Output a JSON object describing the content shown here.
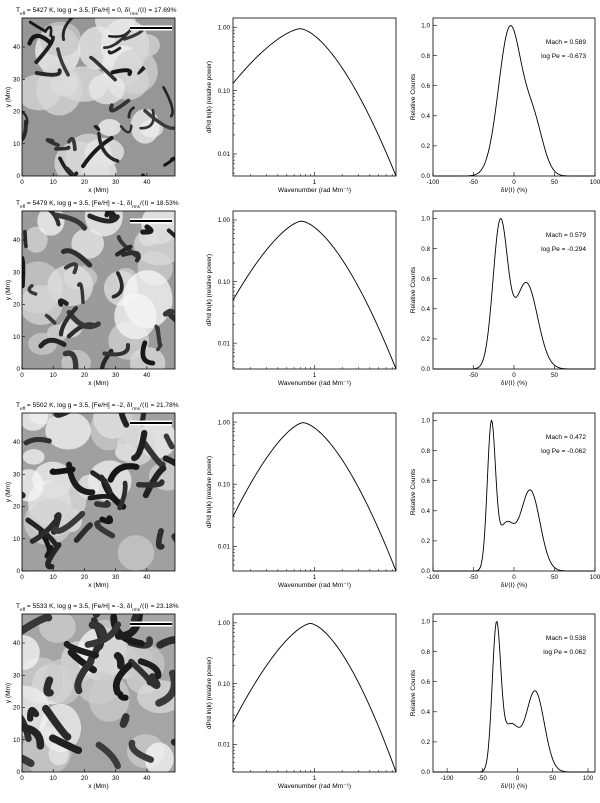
{
  "chart_data": [
    {
      "row": 1,
      "image_panel": {
        "type": "heatmap",
        "title_parts": [
          "T",
          "eff",
          " = 5427 K, log g = 3.5, [Fe/H] = 0, δI",
          "rms",
          "/⟨I⟩ = 17.69%"
        ],
        "xlabel": "x (Mm)",
        "ylabel": "y (Mm)",
        "xlim": [
          0,
          49
        ],
        "ylim": [
          0,
          49
        ],
        "xticks": [
          "0",
          "10",
          "20",
          "30",
          "40"
        ],
        "yticks": [
          "0",
          "10",
          "20",
          "30",
          "40"
        ]
      },
      "spectrum_panel": {
        "type": "line",
        "xlabel": "Wavenumber (rad Mm⁻¹)",
        "ylabel": "dP/d ln(k) (relative power)",
        "log_y": true,
        "log_x": true,
        "xlim": [
          0.13,
          7.7
        ],
        "ylim": [
          0.0045,
          1.4
        ],
        "xticks": [
          "1"
        ],
        "yticks": [
          "1.00",
          "0.10",
          "0.01"
        ],
        "peak_k": 0.7,
        "peak_power": 0.95,
        "left_power": 0.13,
        "right_power": 0.0045,
        "x": [
          0.13,
          0.7,
          7.7
        ],
        "y": [
          0.13,
          0.95,
          0.0045
        ]
      },
      "histogram_panel": {
        "type": "line",
        "xlabel": "δI/⟨I⟩ (%)",
        "ylabel": "Relative Counts",
        "xlim": [
          -100,
          100
        ],
        "ylim": [
          0,
          1.05
        ],
        "xticks": [
          "-100",
          "-50",
          "0",
          "50",
          "100"
        ],
        "yticks": [
          "0.0",
          "0.2",
          "0.4",
          "0.6",
          "0.8",
          "1.0"
        ],
        "mach_label": "Mach = 0.589",
        "pe_label": "log Pe = -0.673",
        "peaks": [
          {
            "x": -5,
            "h": 1.0,
            "w": 14
          },
          {
            "x": 24,
            "h": 0.35,
            "w": 12
          }
        ],
        "x": [
          -5,
          24
        ],
        "y": [
          1.0,
          0.35
        ]
      }
    },
    {
      "row": 2,
      "image_panel": {
        "type": "heatmap",
        "title_parts": [
          "T",
          "eff",
          " = 5479 K, log g = 3.5, [Fe/H] = -1, δI",
          "rms",
          "/⟨I⟩ = 18.53%"
        ],
        "xlabel": "x (Mm)",
        "ylabel": "y (Mm)",
        "xlim": [
          0,
          49
        ],
        "ylim": [
          0,
          49
        ],
        "xticks": [
          "0",
          "10",
          "20",
          "30",
          "40"
        ],
        "yticks": [
          "0",
          "10",
          "20",
          "30",
          "40"
        ]
      },
      "spectrum_panel": {
        "type": "line",
        "xlabel": "Wavenumber (rad Mm⁻¹)",
        "ylabel": "dP/d ln(k) (relative power)",
        "log_y": true,
        "log_x": true,
        "xlim": [
          0.13,
          7.7
        ],
        "ylim": [
          0.0038,
          1.4
        ],
        "xticks": [
          "1"
        ],
        "yticks": [
          "1.00",
          "0.10",
          "0.01"
        ],
        "peak_k": 0.72,
        "peak_power": 0.96,
        "left_power": 0.05,
        "right_power": 0.0038,
        "x": [
          0.13,
          0.72,
          7.7
        ],
        "y": [
          0.05,
          0.96,
          0.0038
        ]
      },
      "histogram_panel": {
        "type": "line",
        "xlabel": "δI/⟨I⟩ (%)",
        "ylabel": "Relative Counts",
        "xlim": [
          -100,
          100
        ],
        "ylim": [
          0,
          1.05
        ],
        "xticks": [
          "-50",
          "0",
          "50"
        ],
        "yticks": [
          "0.0",
          "0.2",
          "0.4",
          "0.6",
          "0.8",
          "1.0"
        ],
        "mach_label": "Mach = 0.579",
        "pe_label": "log Pe = -0.294",
        "peaks": [
          {
            "x": -17,
            "h": 1.0,
            "w": 9
          },
          {
            "x": 15,
            "h": 0.6,
            "w": 14
          }
        ],
        "x": [
          -17,
          15
        ],
        "y": [
          1.0,
          0.6
        ]
      }
    },
    {
      "row": 3,
      "image_panel": {
        "type": "heatmap",
        "title_parts": [
          "T",
          "eff",
          " = 5502 K, log g = 3.5, [Fe/H] = -2, δI",
          "rms",
          "/⟨I⟩ = 21.78%"
        ],
        "xlabel": "x (Mm)",
        "ylabel": "y (Mm)",
        "xlim": [
          0,
          49
        ],
        "ylim": [
          0,
          49
        ],
        "xticks": [
          "0",
          "10",
          "20",
          "30",
          "40"
        ],
        "yticks": [
          "0",
          "10",
          "20",
          "30",
          "40"
        ]
      },
      "spectrum_panel": {
        "type": "line",
        "xlabel": "Wavenumber (rad Mm⁻¹)",
        "ylabel": "dP/d ln(k) (relative power)",
        "log_y": true,
        "log_x": true,
        "xlim": [
          0.13,
          7.7
        ],
        "ylim": [
          0.004,
          1.4
        ],
        "xticks": [
          "1"
        ],
        "yticks": [
          "1.00",
          "0.10",
          "0.01"
        ],
        "peak_k": 0.75,
        "peak_power": 0.98,
        "left_power": 0.03,
        "right_power": 0.004,
        "x": [
          0.13,
          0.75,
          7.7
        ],
        "y": [
          0.03,
          0.98,
          0.004
        ]
      },
      "histogram_panel": {
        "type": "line",
        "xlabel": "δI/⟨I⟩ (%)",
        "ylabel": "Relative Counts",
        "xlim": [
          -100,
          100
        ],
        "ylim": [
          0,
          1.05
        ],
        "xticks": [
          "-100",
          "-50",
          "0",
          "50",
          "100"
        ],
        "yticks": [
          "0.0",
          "0.2",
          "0.4",
          "0.6",
          "0.8",
          "1.0"
        ],
        "mach_label": "Mach = 0.472",
        "pe_label": "log Pe = -0.062",
        "peaks": [
          {
            "x": -28,
            "h": 1.0,
            "w": 5
          },
          {
            "x": -10,
            "h": 0.32,
            "w": 10
          },
          {
            "x": 20,
            "h": 0.57,
            "w": 12
          }
        ],
        "x": [
          -28,
          -10,
          20
        ],
        "y": [
          1.0,
          0.32,
          0.57
        ]
      }
    },
    {
      "row": 4,
      "image_panel": {
        "type": "heatmap",
        "title_parts": [
          "T",
          "eff",
          " = 5533 K, log g = 3.5, [Fe/H] = -3, δI",
          "rms",
          "/⟨I⟩ = 23.18%"
        ],
        "xlabel": "x (Mm)",
        "ylabel": "y (Mm)",
        "xlim": [
          0,
          49
        ],
        "ylim": [
          0,
          49
        ],
        "xticks": [
          "0",
          "10",
          "20",
          "30",
          "40"
        ],
        "yticks": [
          "0",
          "10",
          "20",
          "30",
          "40"
        ]
      },
      "spectrum_panel": {
        "type": "line",
        "xlabel": "Wavenumber (rad Mm⁻¹)",
        "ylabel": "dP/d ln(k) (relative power)",
        "log_y": true,
        "log_x": true,
        "xlim": [
          0.13,
          7.7
        ],
        "ylim": [
          0.0035,
          1.4
        ],
        "xticks": [
          "1"
        ],
        "yticks": [
          "1.00",
          "0.10",
          "0.01"
        ],
        "peak_k": 0.9,
        "peak_power": 0.98,
        "left_power": 0.023,
        "right_power": 0.0035,
        "x": [
          0.13,
          0.9,
          7.7
        ],
        "y": [
          0.023,
          0.98,
          0.0035
        ]
      },
      "histogram_panel": {
        "type": "line",
        "xlabel": "δI/⟨I⟩ (%)",
        "ylabel": "Relative Counts",
        "xlim": [
          -120,
          110
        ],
        "ylim": [
          0,
          1.05
        ],
        "xticks": [
          "-100",
          "-50",
          "0",
          "50",
          "100"
        ],
        "yticks": [
          "0.0",
          "0.2",
          "0.4",
          "0.6",
          "0.8",
          "1.0"
        ],
        "mach_label": "Mach = 0.538",
        "pe_label": "log Pe = 0.062",
        "peaks": [
          {
            "x": -30,
            "h": 1.0,
            "w": 6
          },
          {
            "x": -10,
            "h": 0.33,
            "w": 12
          },
          {
            "x": 25,
            "h": 0.58,
            "w": 13
          }
        ],
        "x": [
          -30,
          -10,
          25
        ],
        "y": [
          1.0,
          0.33,
          0.58
        ]
      }
    }
  ]
}
